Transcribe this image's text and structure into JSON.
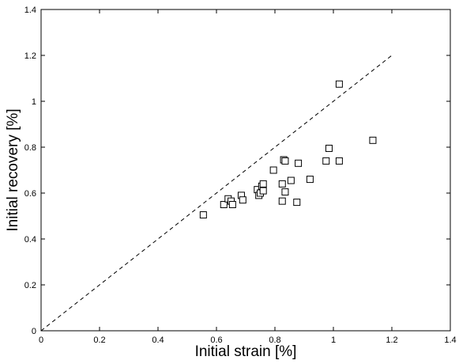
{
  "chart_data": {
    "type": "scatter",
    "title": "",
    "xlabel": "Initial strain [%]",
    "ylabel": "Initial recovery [%]",
    "xlim": [
      0,
      1.4
    ],
    "ylim": [
      0,
      1.4
    ],
    "xticks": [
      "0",
      "0.2",
      "0.4",
      "0.6",
      "0.8",
      "1",
      "1.2",
      "1.4"
    ],
    "yticks": [
      "0",
      "0.2",
      "0.4",
      "0.6",
      "0.8",
      "1",
      "1.2",
      "1.4"
    ],
    "grid": false,
    "marker": "square",
    "reference_line": {
      "style": "dashed",
      "x": [
        0,
        1.2
      ],
      "y": [
        0,
        1.2
      ]
    },
    "series": [
      {
        "points": [
          [
            0.555,
            0.505
          ],
          [
            0.625,
            0.55
          ],
          [
            0.64,
            0.575
          ],
          [
            0.65,
            0.565
          ],
          [
            0.655,
            0.55
          ],
          [
            0.685,
            0.59
          ],
          [
            0.69,
            0.57
          ],
          [
            0.74,
            0.615
          ],
          [
            0.745,
            0.59
          ],
          [
            0.75,
            0.6
          ],
          [
            0.755,
            0.63
          ],
          [
            0.76,
            0.64
          ],
          [
            0.76,
            0.61
          ],
          [
            0.795,
            0.7
          ],
          [
            0.825,
            0.565
          ],
          [
            0.825,
            0.64
          ],
          [
            0.83,
            0.745
          ],
          [
            0.835,
            0.74
          ],
          [
            0.835,
            0.605
          ],
          [
            0.855,
            0.655
          ],
          [
            0.875,
            0.56
          ],
          [
            0.88,
            0.73
          ],
          [
            0.92,
            0.66
          ],
          [
            0.975,
            0.74
          ],
          [
            0.985,
            0.795
          ],
          [
            1.02,
            1.075
          ],
          [
            1.02,
            0.74
          ],
          [
            1.135,
            0.83
          ]
        ]
      }
    ]
  }
}
